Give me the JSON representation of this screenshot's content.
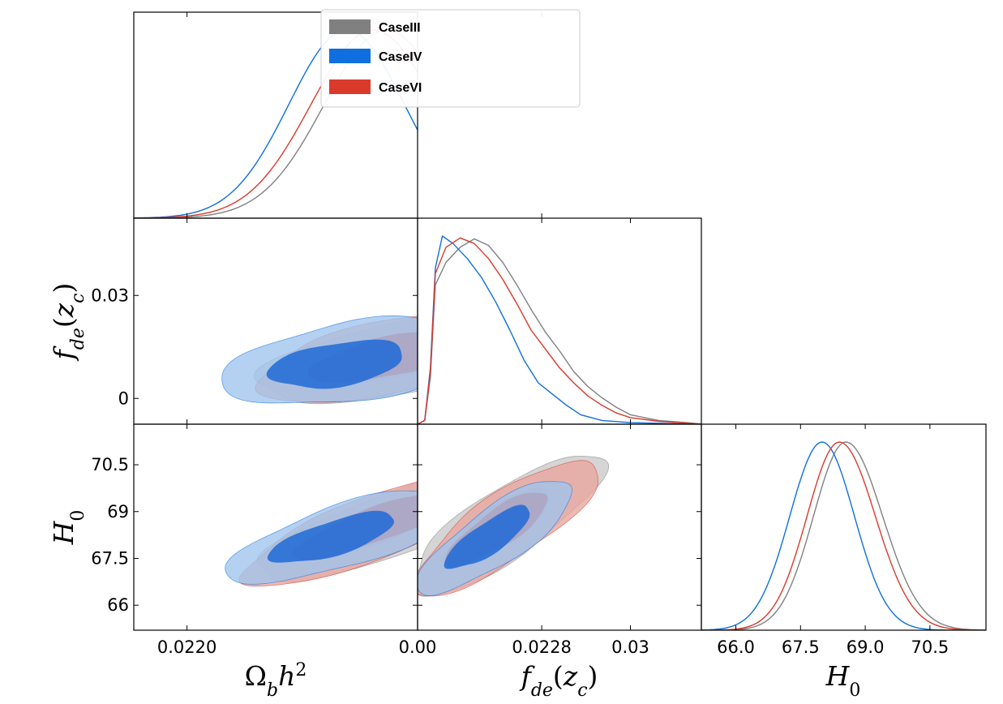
{
  "chart_data": {
    "type": "triangle-plot",
    "parameters": [
      {
        "id": "omegabh2",
        "label": "Ωbh2",
        "range": [
          0.02188,
          0.02252
        ],
        "ticks": [
          0.022,
          0.0228
        ],
        "tick_labels": [
          "0.0220",
          "0.0228"
        ]
      },
      {
        "id": "fde",
        "label": "fde(zc)",
        "range": [
          0.0,
          0.04
        ],
        "ticks": [
          0.0,
          0.03
        ],
        "tick_labels": [
          "0.00",
          "0.03"
        ],
        "left_ticks": [
          0.0,
          0.03
        ],
        "left_tick_labels": [
          "0",
          "0.03"
        ],
        "left_range": [
          -0.0075,
          0.0525
        ]
      },
      {
        "id": "H0",
        "label": "H0",
        "range": [
          65.2,
          71.8
        ],
        "ticks": [
          66.0,
          67.5,
          69.0,
          70.5
        ],
        "tick_labels": [
          "66.0",
          "67.5",
          "69.0",
          "70.5"
        ],
        "left_ticks": [
          66.0,
          67.5,
          69.0,
          70.5
        ],
        "left_tick_labels": [
          "66",
          "67.5",
          "69",
          "70.5"
        ]
      }
    ],
    "series": [
      {
        "name": "CaseIII",
        "legend": "CaseIII",
        "color": "#808080",
        "fill_outer": "#c9c9c9",
        "fill_inner": "#9e9e9e",
        "omegabh2_mean": 0.02245,
        "omegabh2_sd": 0.00014,
        "fde_curve": [
          [
            0.0,
            0.0
          ],
          [
            0.001,
            0.02
          ],
          [
            0.0018,
            0.25
          ],
          [
            0.0025,
            0.74
          ],
          [
            0.004,
            0.86
          ],
          [
            0.006,
            0.94
          ],
          [
            0.008,
            0.985
          ],
          [
            0.01,
            0.95
          ],
          [
            0.012,
            0.86
          ],
          [
            0.014,
            0.74
          ],
          [
            0.016,
            0.61
          ],
          [
            0.018,
            0.49
          ],
          [
            0.02,
            0.39
          ],
          [
            0.022,
            0.28
          ],
          [
            0.024,
            0.2
          ],
          [
            0.026,
            0.14
          ],
          [
            0.028,
            0.09
          ],
          [
            0.03,
            0.05
          ],
          [
            0.034,
            0.02
          ],
          [
            0.038,
            0.008
          ],
          [
            0.04,
            0.0
          ]
        ],
        "H0_mean": 68.55,
        "H0_sd": 0.75,
        "H0_skew": 0.55,
        "c_ob_fde": {
          "center": [
            0.0225,
            0.0125
          ],
          "rx": 0.00035,
          "ry": 0.0105,
          "angle": 0.2
        },
        "c_ob_h0": {
          "center": [
            0.02248,
            68.7
          ],
          "rx": 0.00035,
          "ry": 1.0,
          "angle": 0.35
        },
        "c_fde_h0": {
          "center": [
            0.0125,
            68.6
          ],
          "rx": 0.016,
          "ry": 1.1,
          "angle": 0.6
        }
      },
      {
        "name": "CaseIV",
        "legend": "CaseIV",
        "color": "#0f6fde",
        "fill_outer": "#9fc4ee",
        "fill_inner": "#1e6ad6",
        "omegabh2_mean": 0.02236,
        "omegabh2_sd": 0.00013,
        "fde_curve": [
          [
            0.0,
            0.0
          ],
          [
            0.001,
            0.02
          ],
          [
            0.0018,
            0.3
          ],
          [
            0.0025,
            0.83
          ],
          [
            0.0035,
            1.0
          ],
          [
            0.005,
            0.96
          ],
          [
            0.007,
            0.88
          ],
          [
            0.009,
            0.78
          ],
          [
            0.011,
            0.65
          ],
          [
            0.013,
            0.5
          ],
          [
            0.015,
            0.34
          ],
          [
            0.017,
            0.22
          ],
          [
            0.019,
            0.16
          ],
          [
            0.021,
            0.1
          ],
          [
            0.023,
            0.05
          ],
          [
            0.026,
            0.02
          ],
          [
            0.03,
            0.008
          ],
          [
            0.036,
            0.003
          ],
          [
            0.04,
            0.0
          ]
        ],
        "H0_mean": 68.0,
        "H0_sd": 0.75,
        "H0_skew": 0.0,
        "c_ob_fde": {
          "center": [
            0.02236,
            0.0105
          ],
          "rx": 0.00028,
          "ry": 0.0115,
          "angle": 0.15
        },
        "c_ob_h0": {
          "center": [
            0.02235,
            68.2
          ],
          "rx": 0.00027,
          "ry": 1.0,
          "angle": 0.3
        },
        "c_fde_h0": {
          "center": [
            0.011,
            68.2
          ],
          "rx": 0.013,
          "ry": 0.9,
          "angle": 0.6
        }
      },
      {
        "name": "CaseVI",
        "legend": "CaseVI",
        "color": "#d93a2b",
        "fill_outer": "#eba59d",
        "fill_inner": "#d7321f",
        "omegabh2_mean": 0.02242,
        "omegabh2_sd": 0.00014,
        "fde_curve": [
          [
            0.0,
            0.0
          ],
          [
            0.001,
            0.02
          ],
          [
            0.0018,
            0.28
          ],
          [
            0.0025,
            0.8
          ],
          [
            0.004,
            0.94
          ],
          [
            0.006,
            0.99
          ],
          [
            0.008,
            0.96
          ],
          [
            0.01,
            0.88
          ],
          [
            0.012,
            0.77
          ],
          [
            0.014,
            0.64
          ],
          [
            0.016,
            0.5
          ],
          [
            0.018,
            0.4
          ],
          [
            0.02,
            0.3
          ],
          [
            0.022,
            0.22
          ],
          [
            0.024,
            0.15
          ],
          [
            0.026,
            0.1
          ],
          [
            0.028,
            0.06
          ],
          [
            0.03,
            0.035
          ],
          [
            0.034,
            0.015
          ],
          [
            0.038,
            0.005
          ],
          [
            0.04,
            0.0
          ]
        ],
        "H0_mean": 68.4,
        "H0_sd": 0.75,
        "H0_skew": 0.45,
        "c_ob_fde": {
          "center": [
            0.02248,
            0.0125
          ],
          "rx": 0.00033,
          "ry": 0.0105,
          "angle": 0.2
        },
        "c_ob_h0": {
          "center": [
            0.02245,
            68.6
          ],
          "rx": 0.00035,
          "ry": 1.0,
          "angle": 0.35
        },
        "c_fde_h0": {
          "center": [
            0.0125,
            68.5
          ],
          "rx": 0.0155,
          "ry": 1.05,
          "angle": 0.6
        }
      }
    ],
    "legend": {
      "placement": "top-center",
      "entries": [
        "CaseIII",
        "CaseIV",
        "CaseVI"
      ]
    }
  }
}
